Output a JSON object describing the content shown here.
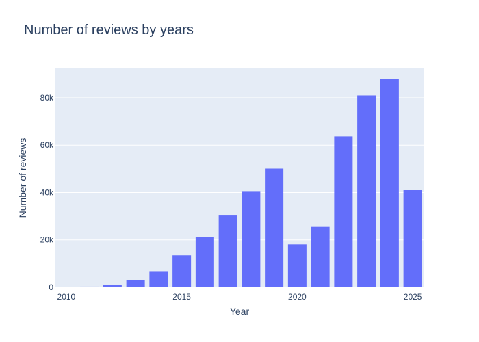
{
  "chart_data": {
    "type": "bar",
    "title": "Number of reviews by years",
    "xlabel": "Year",
    "ylabel": "Number of reviews",
    "x": [
      2010,
      2011,
      2012,
      2013,
      2014,
      2015,
      2016,
      2017,
      2018,
      2019,
      2020,
      2021,
      2022,
      2023,
      2024,
      2025
    ],
    "values": [
      50,
      300,
      900,
      3000,
      6800,
      13500,
      21200,
      30300,
      40600,
      50100,
      18100,
      25500,
      63700,
      81000,
      87800,
      41000
    ],
    "xlim": [
      2009.5,
      2025.5
    ],
    "ylim": [
      0,
      92400
    ],
    "x_ticks": [
      2010,
      2015,
      2020,
      2025
    ],
    "x_tick_labels": [
      "2010",
      "2015",
      "2020",
      "2025"
    ],
    "y_ticks": [
      0,
      20000,
      40000,
      60000,
      80000
    ],
    "y_tick_labels": [
      "0",
      "20k",
      "40k",
      "60k",
      "80k"
    ],
    "grid": true,
    "colors": {
      "bar": "#636efa",
      "plot_bg": "#e5ecf6",
      "text": "#2a3f5f",
      "grid": "#ffffff"
    }
  }
}
